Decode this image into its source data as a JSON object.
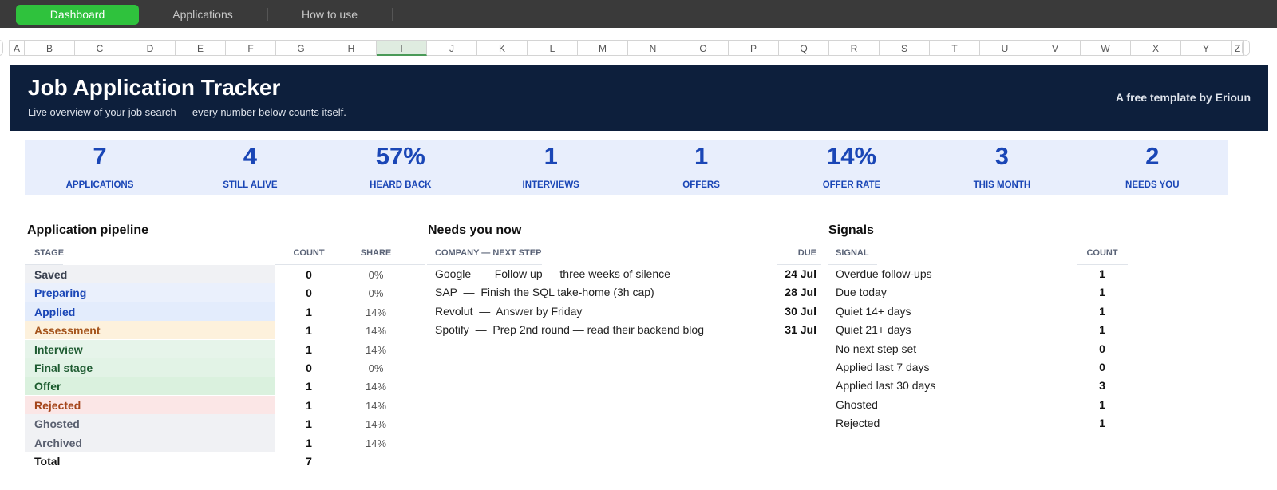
{
  "tabs": [
    {
      "label": "Dashboard",
      "active": true
    },
    {
      "label": "Applications",
      "active": false
    },
    {
      "label": "How to use",
      "active": false
    }
  ],
  "columns": [
    "A",
    "B",
    "C",
    "D",
    "E",
    "F",
    "G",
    "H",
    "I",
    "J",
    "K",
    "L",
    "M",
    "N",
    "O",
    "P",
    "Q",
    "R",
    "S",
    "T",
    "U",
    "V",
    "W",
    "X",
    "Y",
    "Z"
  ],
  "selected_column": "I",
  "banner": {
    "title": "Job Application Tracker",
    "subtitle": "Live overview of your job search — every number below counts itself.",
    "credit": "A free template by Erioun"
  },
  "kpis": [
    {
      "value": "7",
      "label": "APPLICATIONS"
    },
    {
      "value": "4",
      "label": "STILL ALIVE"
    },
    {
      "value": "57%",
      "label": "HEARD BACK"
    },
    {
      "value": "1",
      "label": "INTERVIEWS"
    },
    {
      "value": "1",
      "label": "OFFERS"
    },
    {
      "value": "14%",
      "label": "OFFER RATE"
    },
    {
      "value": "3",
      "label": "THIS MONTH"
    },
    {
      "value": "2",
      "label": "NEEDS YOU"
    }
  ],
  "pipeline": {
    "title": "Application pipeline",
    "headers": {
      "stage": "STAGE",
      "count": "COUNT",
      "share": "SHARE"
    },
    "rows": [
      {
        "stage": "Saved",
        "count": "0",
        "share": "0%",
        "bg": "#f0f1f4",
        "fg": "#3a4150"
      },
      {
        "stage": "Preparing",
        "count": "0",
        "share": "0%",
        "bg": "#eaf0fc",
        "fg": "#1a46b6"
      },
      {
        "stage": "Applied",
        "count": "1",
        "share": "14%",
        "bg": "#e3ecfc",
        "fg": "#1a46b6"
      },
      {
        "stage": "Assessment",
        "count": "1",
        "share": "14%",
        "bg": "#fdf1dc",
        "fg": "#a4531a"
      },
      {
        "stage": "Interview",
        "count": "1",
        "share": "14%",
        "bg": "#e6f4ea",
        "fg": "#1f5c32"
      },
      {
        "stage": "Final stage",
        "count": "0",
        "share": "0%",
        "bg": "#e2f3e6",
        "fg": "#1f5c32"
      },
      {
        "stage": "Offer",
        "count": "1",
        "share": "14%",
        "bg": "#daf1de",
        "fg": "#1a5a2c"
      },
      {
        "stage": "Rejected",
        "count": "1",
        "share": "14%",
        "bg": "#fbe6e6",
        "fg": "#a4441a"
      },
      {
        "stage": "Ghosted",
        "count": "1",
        "share": "14%",
        "bg": "#f0f1f4",
        "fg": "#5a6070"
      },
      {
        "stage": "Archived",
        "count": "1",
        "share": "14%",
        "bg": "#f0f1f4",
        "fg": "#5a6070"
      }
    ],
    "total_label": "Total",
    "total_count": "7"
  },
  "needs": {
    "title": "Needs you now",
    "headers": {
      "company": "COMPANY — NEXT STEP",
      "due": "DUE"
    },
    "rows": [
      {
        "text": "Google  —  Follow up — three weeks of silence",
        "due": "24 Jul"
      },
      {
        "text": "SAP  —  Finish the SQL take-home (3h cap)",
        "due": "28 Jul"
      },
      {
        "text": "Revolut  —  Answer by Friday",
        "due": "30 Jul"
      },
      {
        "text": "Spotify  —  Prep 2nd round — read their backend blog",
        "due": "31 Jul"
      }
    ]
  },
  "signals": {
    "title": "Signals",
    "headers": {
      "signal": "SIGNAL",
      "count": "COUNT"
    },
    "rows": [
      {
        "label": "Overdue follow-ups",
        "count": "1"
      },
      {
        "label": "Due today",
        "count": "1"
      },
      {
        "label": "Quiet 14+ days",
        "count": "1"
      },
      {
        "label": "Quiet 21+ days",
        "count": "1"
      },
      {
        "label": "No next step set",
        "count": "0"
      },
      {
        "label": "Applied last 7 days",
        "count": "0"
      },
      {
        "label": "Applied last 30 days",
        "count": "3"
      },
      {
        "label": "Ghosted",
        "count": "1"
      },
      {
        "label": "Rejected",
        "count": "1"
      }
    ]
  }
}
